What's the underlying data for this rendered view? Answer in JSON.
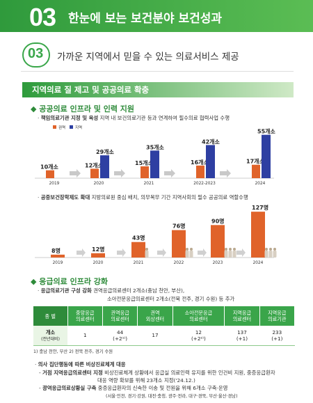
{
  "header": {
    "num": "03",
    "title": "한눈에 보는 보건분야 보건성과"
  },
  "subheader": {
    "num": "03",
    "title": "가까운 지역에서 믿을 수 있는 의료서비스 제공"
  },
  "section1": {
    "title": "지역의료 질 제고 및 공공의료 확충",
    "h1": "◆ 공공의료 인프라 및 인력 지원",
    "b1_bold": "책임의료기관 지정 및 육성",
    "b1_text": "지역 내 보건의료기관 등과 연계하여 필수의료 협력사업 수행",
    "b2_bold": "공중보건장학제도 확대",
    "b2_text": "지방의료원 중심 배치, 의무복무 기간 지역사회의 필수 공공의료 역할수행"
  },
  "chart_data": [
    {
      "type": "bar",
      "categories": [
        "2019",
        "2020",
        "2021",
        "2022-2023",
        "2024"
      ],
      "series": [
        {
          "name": "권역",
          "values": [
            10,
            12,
            15,
            16,
            17
          ],
          "color": "#e0632a"
        },
        {
          "name": "지역",
          "values": [
            null,
            29,
            35,
            42,
            55
          ],
          "color": "#2e3fa2"
        }
      ],
      "unit": "개소",
      "labels_a": [
        "10개소",
        "12개소",
        "15개소",
        "16개소",
        "17개소"
      ],
      "labels_b": [
        "",
        "29개소",
        "35개소",
        "42개소",
        "55개소"
      ],
      "legend": {
        "a": "권역",
        "b": "지역"
      }
    },
    {
      "type": "bar",
      "categories": [
        "2019",
        "2020",
        "2021",
        "2022",
        "2023",
        "2024"
      ],
      "values": [
        8,
        12,
        43,
        76,
        90,
        127
      ],
      "labels": [
        "8명",
        "12명",
        "43명",
        "76명",
        "90명",
        "127명"
      ],
      "unit": "명",
      "color": "#e0632a"
    }
  ],
  "section2": {
    "title": "◆ 응급의료 인프라 강화",
    "b1_bold": "응급의료기관 구성 강화",
    "b1_line1": "권역응급의료센터 2개소(충남 천안, 부산),",
    "b1_line2": "소아전문응급의료센터 2개소(전북 전주, 경기 수원) 등 추가",
    "table": {
      "headers": [
        "종 별",
        "중앙응급\n의료센터",
        "권역응급\n의료센터",
        "권역\n외상센터",
        "소아전문응급\n의료센터",
        "지역응급\n의료센터",
        "지역응급\n의료기관"
      ],
      "row_label": "개소",
      "row_sub": "(전년대비)",
      "values": [
        "1",
        "44",
        "17",
        "12",
        "137",
        "233"
      ],
      "deltas": [
        "",
        "(+2¹⁾)",
        "",
        "(+2²⁾)",
        "(+1)",
        "(+1)"
      ]
    },
    "footnote": "1) 충남 천안, 부산    2) 전북 전주, 경기 수원",
    "b2_bold": "의사 집단행동에 따른 비상진료체계 대응",
    "b3_bold": "거점 지역응급의료센터 지정",
    "b3_line1": "비상진료체계 상황에서 응급실 의료인력 유지를 위한 인건비 지원, 중증응급환자",
    "b3_line2": "대응 역량 확보를 위해 23개소 지정('24.12.)",
    "b4_bold": "광역응급의료상황실 구축",
    "b4_line1": "중증응급환자의 신속한 이송 및 전원을 위해 6개소 구축·운영",
    "b4_line2": "(서울·인천, 경기·강원, 대전·충청, 광주·전라, 대구·경북, 부산·울산·경남)"
  }
}
